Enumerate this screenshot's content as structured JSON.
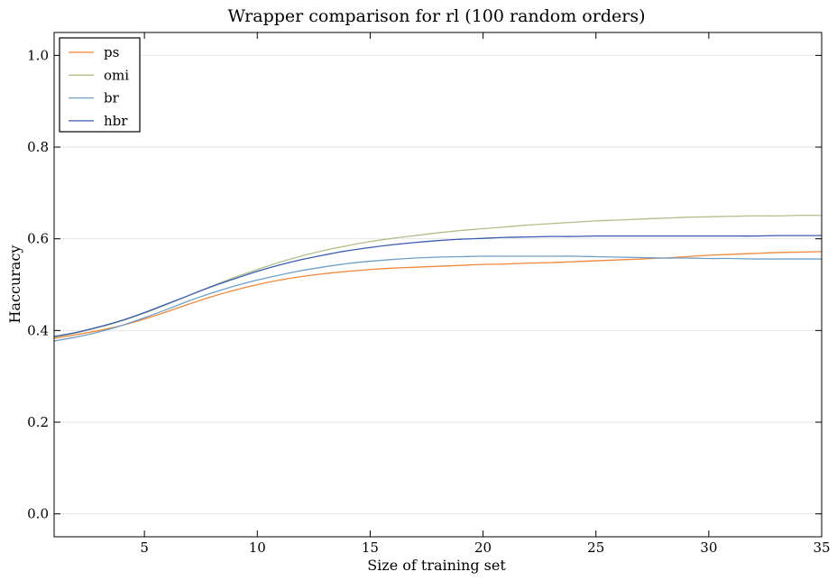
{
  "chart_data": {
    "type": "line",
    "title": "Wrapper comparison for rl (100 random orders)",
    "xlabel": "Size of training set",
    "ylabel": "Haccuracy",
    "xlim": [
      1,
      35
    ],
    "ylim": [
      -0.05,
      1.05
    ],
    "xticks": [
      5,
      10,
      15,
      20,
      25,
      30,
      35
    ],
    "yticks": [
      0.0,
      0.2,
      0.4,
      0.6,
      0.8,
      1.0
    ],
    "ytick_labels": [
      "0.0",
      "0.2",
      "0.4",
      "0.6",
      "0.8",
      "1.0"
    ],
    "grid": "horizontal",
    "legend_position": "top-left",
    "x": [
      1,
      2,
      3,
      4,
      5,
      6,
      7,
      8,
      9,
      10,
      11,
      12,
      13,
      14,
      15,
      16,
      17,
      18,
      19,
      20,
      21,
      22,
      23,
      24,
      25,
      26,
      27,
      28,
      29,
      30,
      31,
      32,
      33,
      34,
      35
    ],
    "series": [
      {
        "name": "ps",
        "color": "#f0883a",
        "values": [
          0.383,
          0.391,
          0.4,
          0.411,
          0.425,
          0.441,
          0.458,
          0.474,
          0.488,
          0.5,
          0.51,
          0.518,
          0.524,
          0.529,
          0.533,
          0.536,
          0.538,
          0.54,
          0.542,
          0.544,
          0.545,
          0.547,
          0.548,
          0.55,
          0.552,
          0.554,
          0.556,
          0.558,
          0.561,
          0.564,
          0.566,
          0.568,
          0.57,
          0.571,
          0.572
        ]
      },
      {
        "name": "omi",
        "color": "#b0c08a",
        "values": [
          0.385,
          0.395,
          0.407,
          0.421,
          0.438,
          0.457,
          0.477,
          0.497,
          0.516,
          0.533,
          0.549,
          0.563,
          0.575,
          0.585,
          0.594,
          0.601,
          0.607,
          0.613,
          0.618,
          0.622,
          0.626,
          0.63,
          0.633,
          0.636,
          0.639,
          0.641,
          0.643,
          0.645,
          0.647,
          0.648,
          0.649,
          0.65,
          0.65,
          0.651,
          0.651
        ]
      },
      {
        "name": "br",
        "color": "#6fa0c8",
        "values": [
          0.377,
          0.386,
          0.397,
          0.411,
          0.428,
          0.446,
          0.465,
          0.482,
          0.497,
          0.51,
          0.521,
          0.531,
          0.539,
          0.546,
          0.551,
          0.555,
          0.558,
          0.56,
          0.561,
          0.562,
          0.562,
          0.562,
          0.562,
          0.562,
          0.561,
          0.56,
          0.559,
          0.558,
          0.558,
          0.557,
          0.557,
          0.556,
          0.556,
          0.556,
          0.556
        ]
      },
      {
        "name": "hbr",
        "color": "#3a5cb0",
        "values": [
          0.387,
          0.396,
          0.408,
          0.422,
          0.439,
          0.458,
          0.477,
          0.496,
          0.513,
          0.529,
          0.543,
          0.555,
          0.565,
          0.574,
          0.581,
          0.587,
          0.592,
          0.596,
          0.599,
          0.601,
          0.603,
          0.604,
          0.605,
          0.605,
          0.606,
          0.606,
          0.606,
          0.606,
          0.606,
          0.606,
          0.606,
          0.606,
          0.607,
          0.607,
          0.607
        ]
      }
    ]
  }
}
